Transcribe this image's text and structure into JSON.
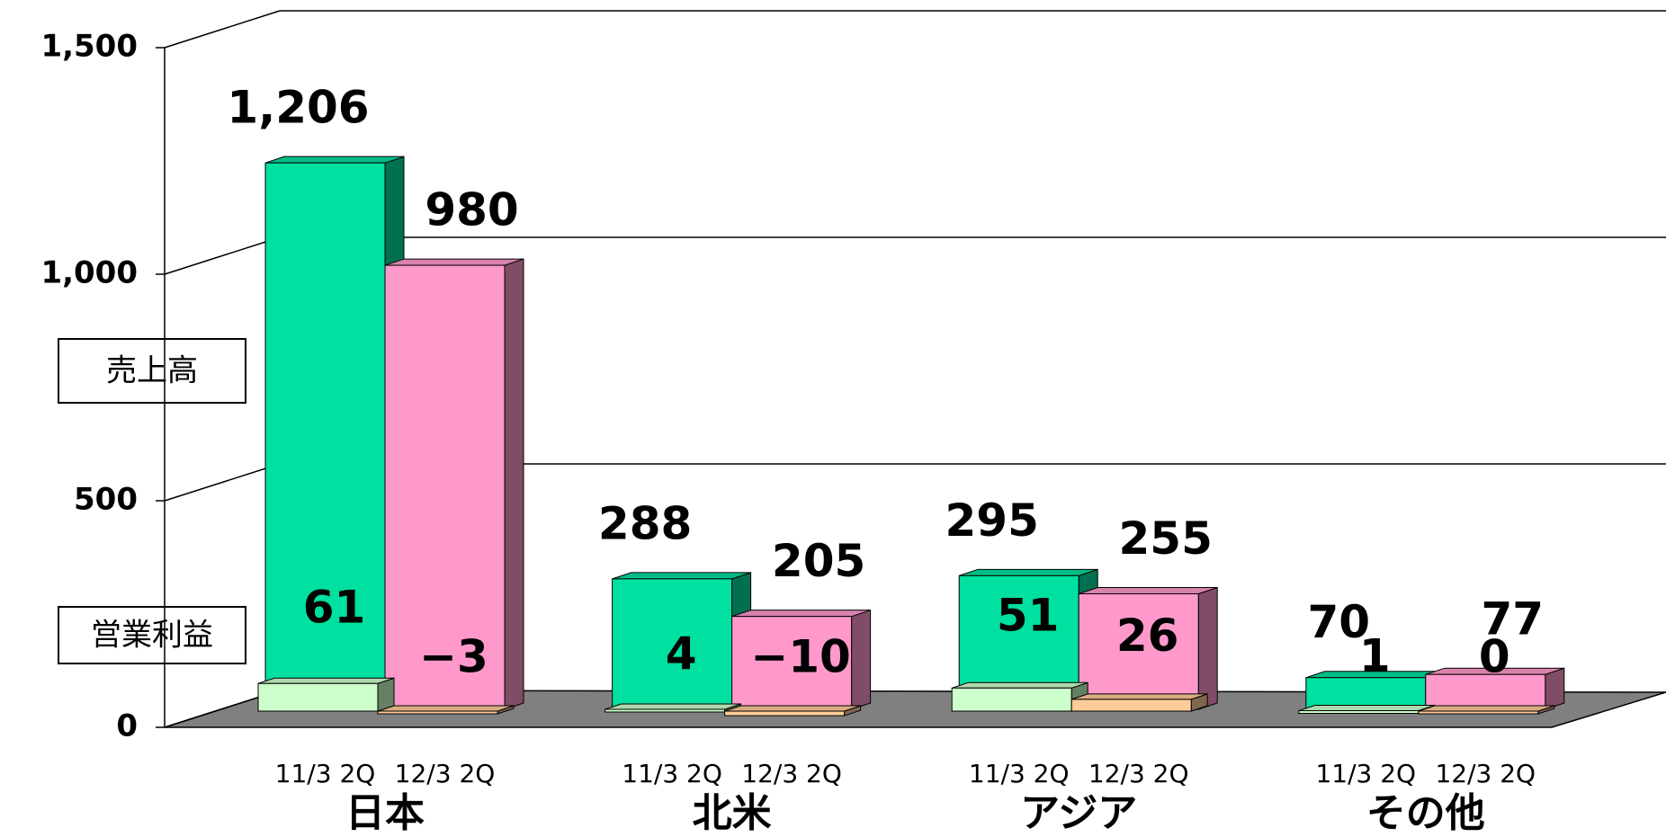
{
  "chart_data": {
    "type": "bar3d",
    "categories": [
      "日本",
      "北米",
      "アジア",
      "その他"
    ],
    "series": [
      {
        "name": "売上高",
        "period": "11/3 2Q",
        "color": "#00e0a0",
        "values": [
          1206,
          288,
          295,
          70
        ],
        "value_labels": [
          "1,206",
          "288",
          "295",
          "70"
        ]
      },
      {
        "name": "売上高",
        "period": "12/3 2Q",
        "color": "#ff99cc",
        "values": [
          980,
          205,
          255,
          77
        ]
      },
      {
        "name": "営業利益",
        "period": "11/3 2Q",
        "color": "#ccffcc",
        "values": [
          61,
          4,
          51,
          1
        ]
      },
      {
        "name": "営業利益",
        "period": "12/3 2Q",
        "color": "#ffcc99",
        "values": [
          -3,
          -10,
          26,
          0
        ],
        "value_labels": [
          "−3",
          "−10",
          "26",
          "0"
        ]
      }
    ],
    "ylim": [
      0,
      1500
    ],
    "yticks": [
      0,
      500,
      {
        "value": 1000,
        "label": "1,000"
      },
      {
        "value": 1500,
        "label": "1,500"
      }
    ]
  }
}
